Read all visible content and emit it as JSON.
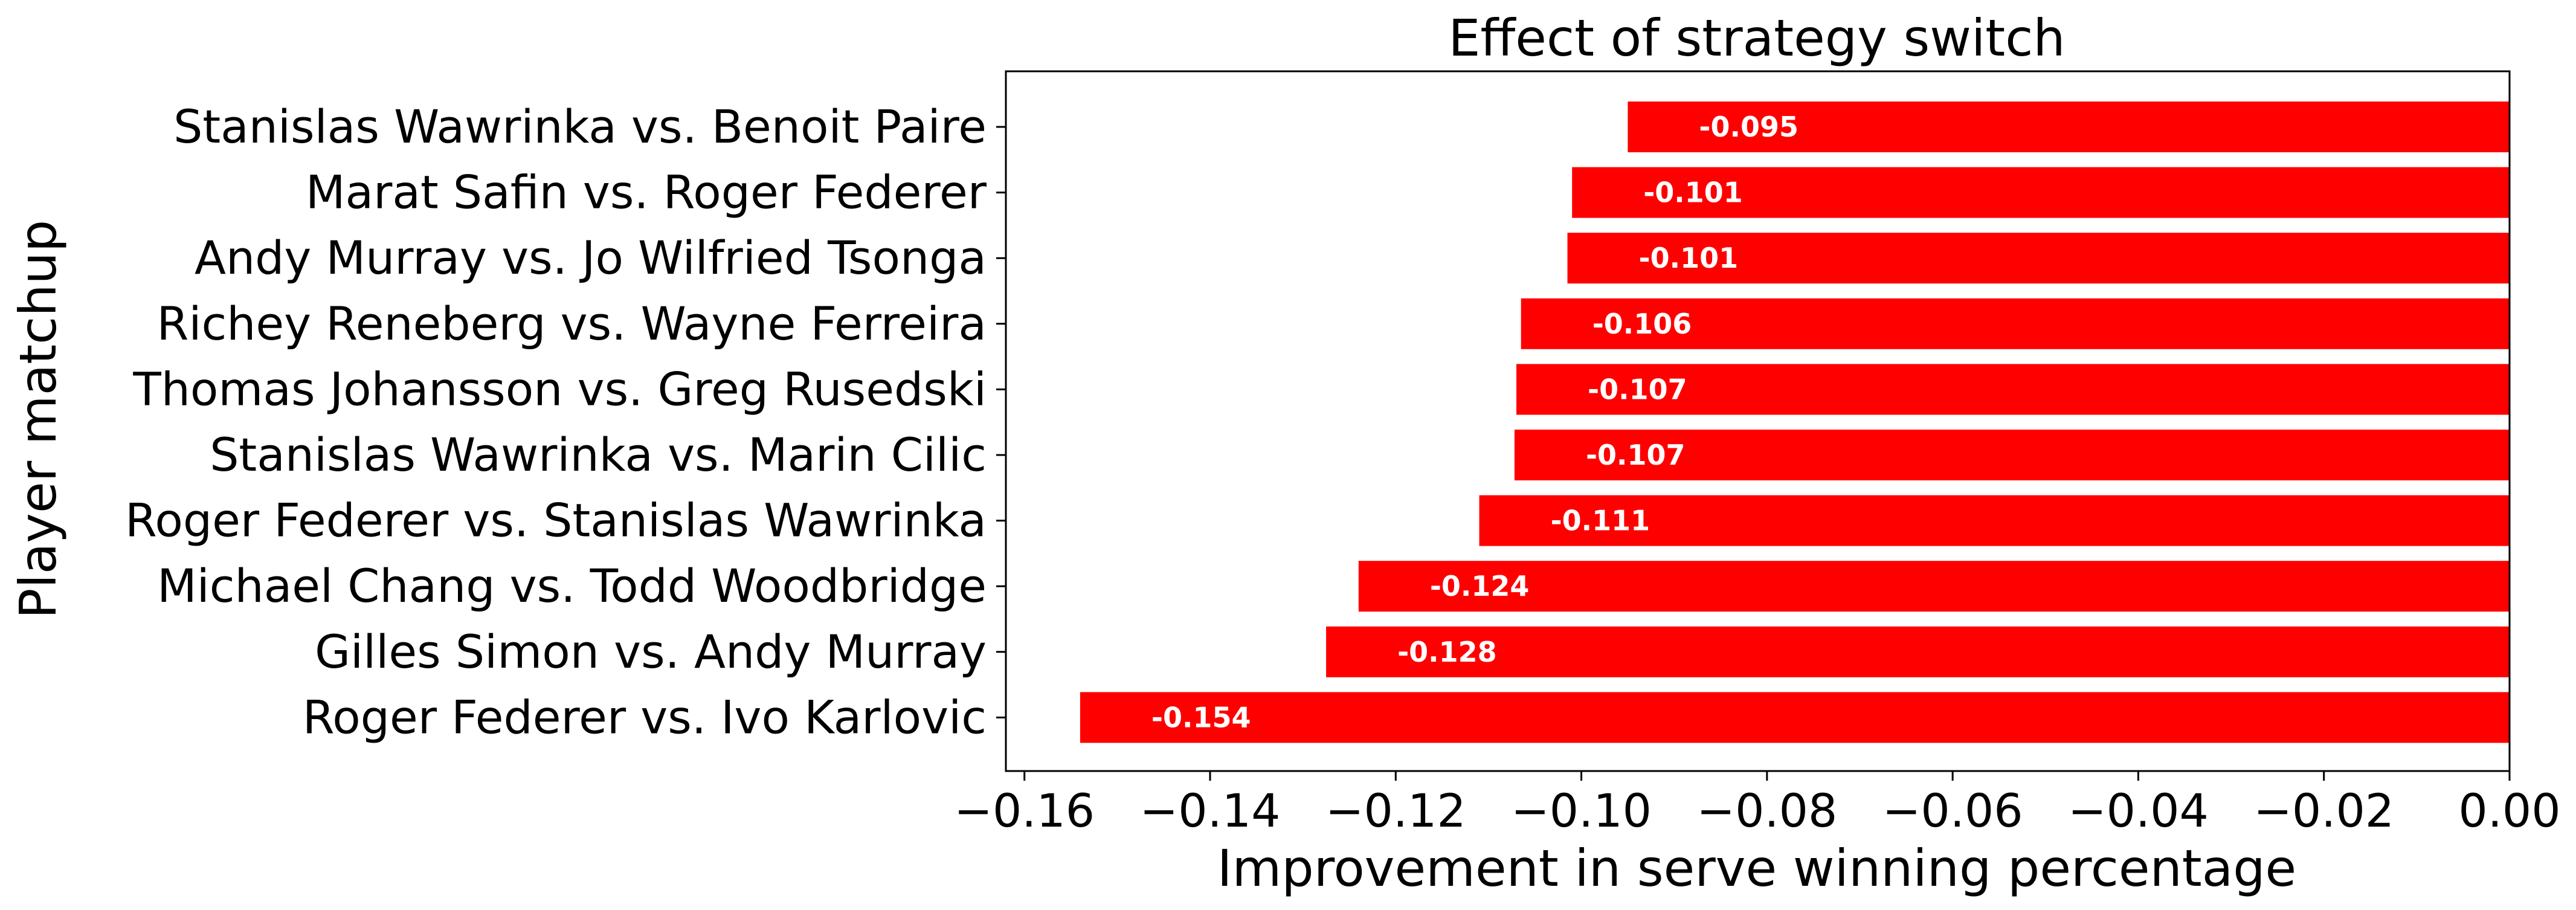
{
  "chart_data": {
    "type": "bar",
    "orientation": "horizontal",
    "title": "Effect of strategy switch",
    "xlabel": "Improvement in serve winning percentage",
    "ylabel": "Player matchup",
    "xlim": [
      -0.162,
      0.0
    ],
    "xticks": [
      "−0.16",
      "−0.14",
      "−0.12",
      "−0.10",
      "−0.08",
      "−0.06",
      "−0.04",
      "−0.02",
      "0.00"
    ],
    "xtick_values": [
      -0.16,
      -0.14,
      -0.12,
      -0.1,
      -0.08,
      -0.06,
      -0.04,
      -0.02,
      0.0
    ],
    "bar_color": "#ff0000",
    "grid": false,
    "categories": [
      "Stanislas Wawrinka vs. Benoit Paire",
      "Marat Safin vs. Roger Federer",
      "Andy Murray vs. Jo Wilfried Tsonga",
      "Richey Reneberg vs. Wayne Ferreira",
      "Thomas Johansson vs. Greg Rusedski",
      "Stanislas Wawrinka vs. Marin Cilic",
      "Roger Federer vs. Stanislas Wawrinka",
      "Michael Chang vs. Todd Woodbridge",
      "Gilles Simon vs. Andy Murray",
      "Roger Federer vs. Ivo Karlovic"
    ],
    "values": [
      -0.095,
      -0.101,
      -0.1015,
      -0.1065,
      -0.107,
      -0.1072,
      -0.111,
      -0.124,
      -0.1275,
      -0.154
    ],
    "value_labels": [
      "-0.095",
      "-0.101",
      "-0.101",
      "-0.106",
      "-0.107",
      "-0.107",
      "-0.111",
      "-0.124",
      "-0.128",
      "-0.154"
    ]
  }
}
